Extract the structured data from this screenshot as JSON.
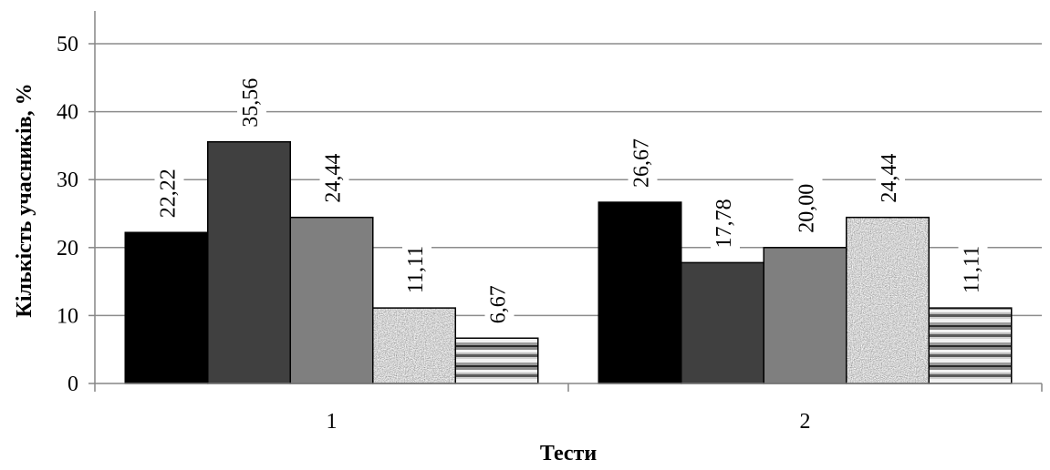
{
  "chart_data": {
    "type": "bar",
    "title": "",
    "xlabel": "Тести",
    "ylabel": "Кількість учасників, %",
    "categories": [
      "1",
      "2"
    ],
    "ylim": [
      0,
      50
    ],
    "yticks": [
      "0",
      "10",
      "20",
      "30",
      "40",
      "50"
    ],
    "grid": true,
    "legend": "none",
    "series": [
      {
        "values": [
          22.22,
          26.67
        ],
        "labels": [
          "22,22",
          "26,67"
        ],
        "fill": "#000000",
        "pattern": "solid"
      },
      {
        "values": [
          35.56,
          17.78
        ],
        "labels": [
          "35,56",
          "17,78"
        ],
        "fill": "#404040",
        "pattern": "solid"
      },
      {
        "values": [
          24.44,
          20.0
        ],
        "labels": [
          "24,44",
          "20,00"
        ],
        "fill": "#7f7f7f",
        "pattern": "solid"
      },
      {
        "values": [
          11.11,
          24.44
        ],
        "labels": [
          "11,11",
          "24,44"
        ],
        "fill": "#a6a6a6",
        "pattern": "speckle"
      },
      {
        "values": [
          6.67,
          11.11
        ],
        "labels": [
          "6,67",
          "11,11"
        ],
        "fill": "#bfbfbf",
        "pattern": "stripes"
      }
    ]
  }
}
